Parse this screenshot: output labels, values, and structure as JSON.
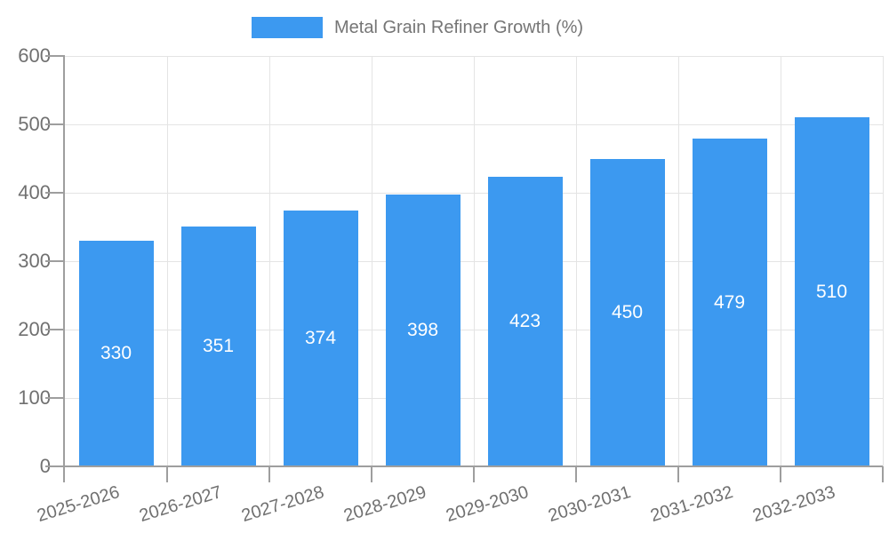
{
  "legend": {
    "series_label": "Metal Grain Refiner Growth (%)"
  },
  "chart_data": {
    "type": "bar",
    "title": "",
    "categories": [
      "2025-2026",
      "2026-2027",
      "2027-2028",
      "2028-2029",
      "2029-2030",
      "2030-2031",
      "2031-2032",
      "2032-2033"
    ],
    "values": [
      330,
      351,
      374,
      398,
      423,
      450,
      479,
      510
    ],
    "series_name": "Metal Grain Refiner Growth (%)",
    "xlabel": "",
    "ylabel": "",
    "ylim": [
      0,
      600
    ],
    "yticks": [
      0,
      100,
      200,
      300,
      400,
      500,
      600
    ],
    "grid": true,
    "legend_position": "top-center",
    "value_labels_inside_bars": true,
    "colors": {
      "bar": "#3C99F0",
      "axis": "#9e9e9e",
      "gridline": "#e4e4e4",
      "tick_text": "#707070",
      "legend_text": "#757575",
      "value_label_text": "#ffffff",
      "background": "#ffffff"
    }
  }
}
